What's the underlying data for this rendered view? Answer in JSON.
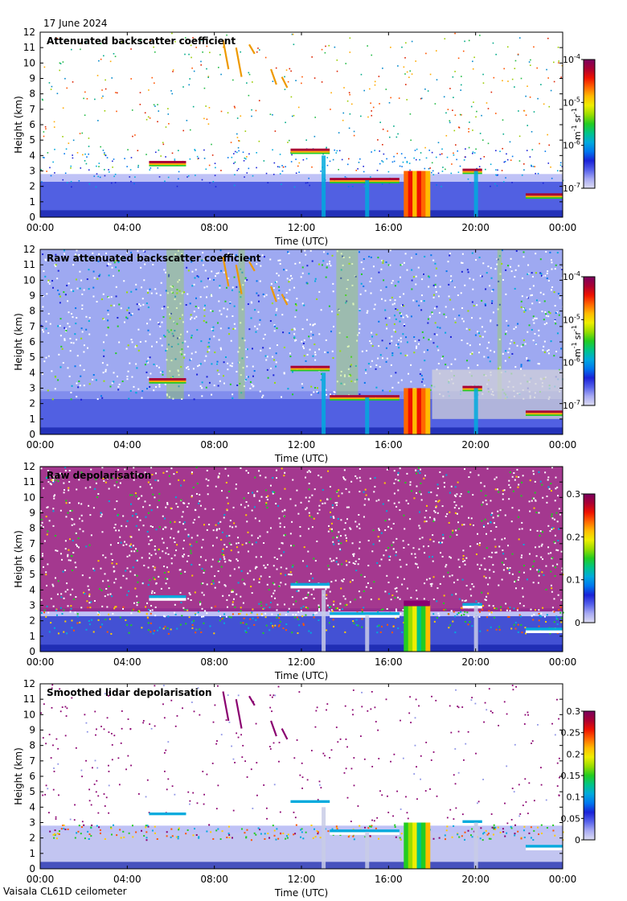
{
  "date": "17 June 2024",
  "footer": "Vaisala CL61D ceilometer",
  "colors": {
    "background": "#ffffff",
    "axis": "#000000",
    "cloud": "#cc1100",
    "precip": "#ff6600",
    "boundary_layer": "#3344dd"
  },
  "chart_data": [
    {
      "type": "heatmap",
      "title": "Attenuated backscatter coefficient",
      "xlabel": "Time (UTC)",
      "ylabel": "Height (km)",
      "x_ticks": [
        "00:00",
        "04:00",
        "08:00",
        "12:00",
        "16:00",
        "20:00",
        "00:00"
      ],
      "xlim_hours": [
        0,
        24
      ],
      "ylim": [
        0,
        12
      ],
      "y_ticks": [
        "0",
        "1",
        "2",
        "3",
        "4",
        "5",
        "6",
        "7",
        "8",
        "9",
        "10",
        "11",
        "12"
      ],
      "colorbar": {
        "scale": "log",
        "ticks": [
          {
            "base": "10",
            "exp": "-7"
          },
          {
            "base": "10",
            "exp": "-6"
          },
          {
            "base": "10",
            "exp": "-5"
          },
          {
            "base": "10",
            "exp": "-4"
          }
        ],
        "unit_parts": [
          "m",
          "-1",
          "sr",
          "-1"
        ]
      },
      "noise_level": "low"
    },
    {
      "type": "heatmap",
      "title": "Raw attenuated backscatter coefficient",
      "xlabel": "Time (UTC)",
      "ylabel": "Height (km)",
      "x_ticks": [
        "00:00",
        "04:00",
        "08:00",
        "12:00",
        "16:00",
        "20:00",
        "00:00"
      ],
      "xlim_hours": [
        0,
        24
      ],
      "ylim": [
        0,
        12
      ],
      "y_ticks": [
        "0",
        "1",
        "2",
        "3",
        "4",
        "5",
        "6",
        "7",
        "8",
        "9",
        "10",
        "11",
        "12"
      ],
      "colorbar": {
        "scale": "log",
        "ticks": [
          {
            "base": "10",
            "exp": "-7"
          },
          {
            "base": "10",
            "exp": "-6"
          },
          {
            "base": "10",
            "exp": "-5"
          },
          {
            "base": "10",
            "exp": "-4"
          }
        ],
        "unit_parts": [
          "m",
          "-1",
          "sr",
          "-1"
        ]
      },
      "noise_level": "high"
    },
    {
      "type": "heatmap",
      "title": "Raw depolarisation",
      "xlabel": "Time (UTC)",
      "ylabel": "Height (km)",
      "x_ticks": [
        "00:00",
        "04:00",
        "08:00",
        "12:00",
        "16:00",
        "20:00",
        "00:00"
      ],
      "xlim_hours": [
        0,
        24
      ],
      "ylim": [
        0,
        12
      ],
      "y_ticks": [
        "0",
        "1",
        "2",
        "3",
        "4",
        "5",
        "6",
        "7",
        "8",
        "9",
        "10",
        "11",
        "12"
      ],
      "colorbar": {
        "scale": "linear",
        "ticks": [
          "0",
          "0.1",
          "0.2",
          "0.3"
        ]
      },
      "noise_level": "depol"
    },
    {
      "type": "heatmap",
      "title": "Smoothed lidar depolarisation",
      "xlabel": "Time (UTC)",
      "ylabel": "Height (km)",
      "x_ticks": [
        "00:00",
        "04:00",
        "08:00",
        "12:00",
        "16:00",
        "20:00",
        "00:00"
      ],
      "xlim_hours": [
        0,
        24
      ],
      "ylim": [
        0,
        12
      ],
      "y_ticks": [
        "0",
        "1",
        "2",
        "3",
        "4",
        "5",
        "6",
        "7",
        "8",
        "9",
        "10",
        "11",
        "12"
      ],
      "colorbar": {
        "scale": "linear",
        "ticks": [
          "0",
          "0.05",
          "0.1",
          "0.15",
          "0.2",
          "0.25",
          "0.3"
        ]
      },
      "noise_level": "sparse"
    }
  ],
  "features": {
    "boundary_layer_top_km": 2.3,
    "cloud_layers": [
      {
        "start_h": 5.0,
        "end_h": 6.7,
        "height_km": 3.5
      },
      {
        "start_h": 11.5,
        "end_h": 13.3,
        "height_km": 4.3
      },
      {
        "start_h": 13.3,
        "end_h": 16.5,
        "height_km": 2.4
      },
      {
        "start_h": 19.4,
        "end_h": 20.3,
        "height_km": 3.0
      },
      {
        "start_h": 22.3,
        "end_h": 24.0,
        "height_km": 1.4
      }
    ],
    "precipitation": [
      {
        "start_h": 16.7,
        "end_h": 17.9,
        "top_km": 3.0
      }
    ]
  }
}
